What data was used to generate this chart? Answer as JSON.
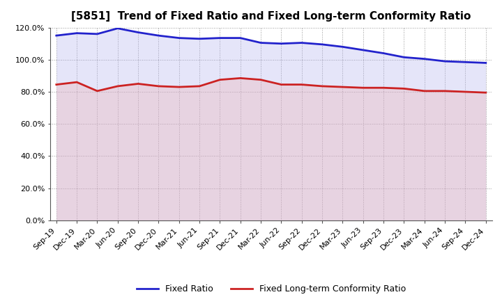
{
  "title": "[5851]  Trend of Fixed Ratio and Fixed Long-term Conformity Ratio",
  "x_labels": [
    "Sep-19",
    "Dec-19",
    "Mar-20",
    "Jun-20",
    "Sep-20",
    "Dec-20",
    "Mar-21",
    "Jun-21",
    "Sep-21",
    "Dec-21",
    "Mar-22",
    "Jun-22",
    "Sep-22",
    "Dec-22",
    "Mar-23",
    "Jun-23",
    "Sep-23",
    "Dec-23",
    "Mar-24",
    "Jun-24",
    "Sep-24",
    "Dec-24"
  ],
  "fixed_ratio": [
    115.0,
    116.5,
    116.0,
    119.5,
    117.0,
    115.0,
    113.5,
    113.0,
    113.5,
    113.5,
    110.5,
    110.0,
    110.5,
    109.5,
    108.0,
    106.0,
    104.0,
    101.5,
    100.5,
    99.0,
    98.5,
    98.0
  ],
  "fixed_lt_conformity": [
    84.5,
    86.0,
    80.5,
    83.5,
    85.0,
    83.5,
    83.0,
    83.5,
    87.5,
    88.5,
    87.5,
    84.5,
    84.5,
    83.5,
    83.0,
    82.5,
    82.5,
    82.0,
    80.5,
    80.5,
    80.0,
    79.5
  ],
  "fixed_ratio_color": "#2222cc",
  "fixed_ratio_fill": "#aaaaee",
  "fixed_lt_color": "#cc2222",
  "fixed_lt_fill": "#eeaaaa",
  "ylim": [
    0,
    120
  ],
  "yticks": [
    0,
    20,
    40,
    60,
    80,
    100,
    120
  ],
  "background_color": "#ffffff",
  "grid_color": "#999999",
  "title_fontsize": 11,
  "tick_fontsize": 8,
  "legend_fontsize": 9
}
